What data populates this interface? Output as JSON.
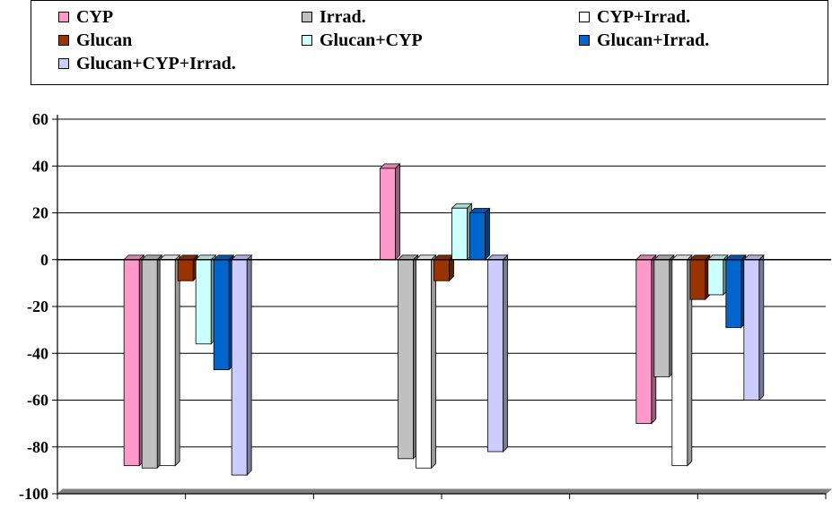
{
  "chart_data": {
    "type": "bar",
    "title": "",
    "xlabel": "",
    "ylabel": "",
    "ylim": [
      -100,
      60
    ],
    "yticks": [
      60,
      40,
      20,
      0,
      -20,
      -40,
      -60,
      -80,
      -100
    ],
    "categories": [
      "",
      "",
      ""
    ],
    "grid": true,
    "legend_position": "top",
    "series": [
      {
        "name": "CYP",
        "color": "#ff99cc",
        "values": [
          -88,
          39,
          -70
        ]
      },
      {
        "name": "Irrad.",
        "color": "#c0c0c0",
        "values": [
          -89,
          -85,
          -50
        ]
      },
      {
        "name": "CYP+Irrad.",
        "color": "#ffffff",
        "values": [
          -88,
          -89,
          -88
        ]
      },
      {
        "name": "Glucan",
        "color": "#993300",
        "values": [
          -9,
          -9,
          -17
        ]
      },
      {
        "name": "Glucan+CYP",
        "color": "#ccffff",
        "values": [
          -36,
          22,
          -15
        ]
      },
      {
        "name": "Glucan+Irrad.",
        "color": "#0066cc",
        "values": [
          -47,
          20,
          -29
        ]
      },
      {
        "name": "Glucan+CYP+Irrad.",
        "color": "#ccccff",
        "values": [
          -92,
          -82,
          -60
        ]
      }
    ]
  }
}
